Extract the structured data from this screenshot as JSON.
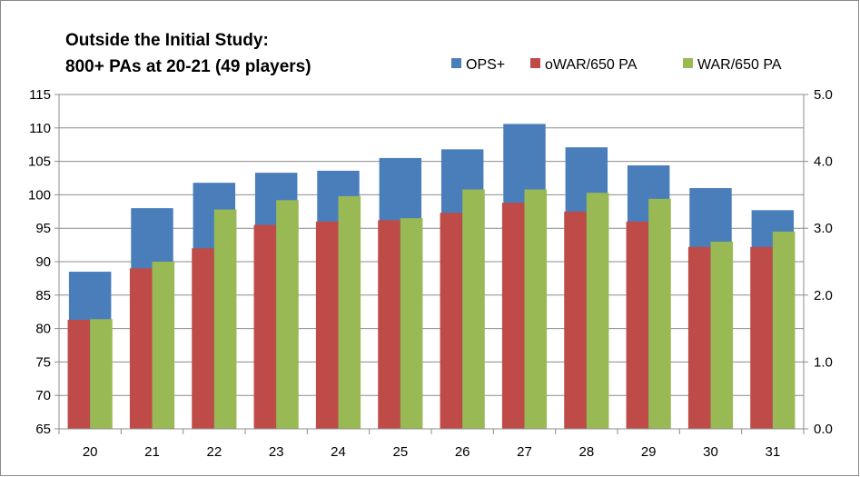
{
  "chart_data": {
    "type": "bar",
    "title": [
      "Outside the Initial Study:",
      "800+ PAs at 20-21 (49 players)"
    ],
    "categories": [
      "20",
      "21",
      "22",
      "23",
      "24",
      "25",
      "26",
      "27",
      "28",
      "29",
      "30",
      "31"
    ],
    "series": [
      {
        "name": "OPS+",
        "axis": "left",
        "color": "#4a7ebb",
        "values": [
          88.5,
          98.0,
          101.8,
          103.3,
          103.6,
          105.5,
          106.8,
          110.6,
          107.1,
          104.4,
          101.0,
          97.7
        ]
      },
      {
        "name": "oWAR/650 PA",
        "axis": "right",
        "color": "#be4b48",
        "values": [
          1.63,
          2.4,
          2.7,
          3.05,
          3.1,
          3.12,
          3.23,
          3.38,
          3.25,
          3.1,
          2.72,
          2.72
        ]
      },
      {
        "name": "WAR/650 PA",
        "axis": "right",
        "color": "#98b954",
        "values": [
          1.64,
          2.5,
          3.28,
          3.42,
          3.48,
          3.15,
          3.58,
          3.58,
          3.53,
          3.44,
          2.8,
          2.95
        ]
      }
    ],
    "y_left": {
      "min": 65,
      "max": 115,
      "step": 5,
      "ticks": [
        "65",
        "70",
        "75",
        "80",
        "85",
        "90",
        "95",
        "100",
        "105",
        "110",
        "115"
      ]
    },
    "y_right": {
      "min": 0,
      "max": 5,
      "step": 1,
      "ticks": [
        "0.0",
        "1.0",
        "2.0",
        "3.0",
        "4.0",
        "5.0"
      ]
    },
    "grid": true,
    "legend_position": "top-right"
  }
}
